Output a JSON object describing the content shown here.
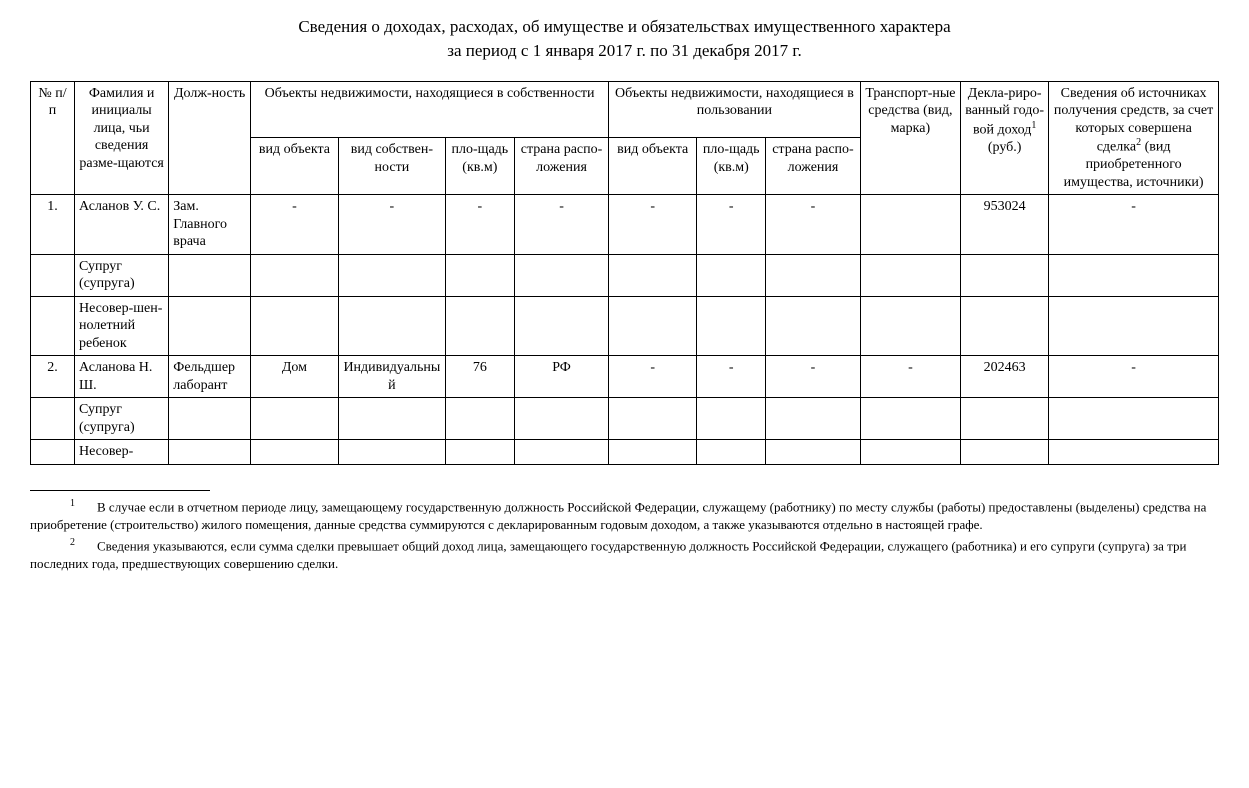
{
  "title": {
    "line1": "Сведения о доходах, расходах, об имуществе и обязательствах имущественного характера",
    "line2": "за период с 1 января 2017 г. по 31 декабря 2017 г."
  },
  "headers": {
    "c0": "№ п/п",
    "c1": "Фамилия и инициалы лица, чьи сведения разме-щаются",
    "c2": "Долж-ность",
    "group_own": "Объекты недвижимости, находящиеся в собственности",
    "group_use": "Объекты недвижимости, находящиеся в пользовании",
    "c7": "Транспорт-ные средства (вид, марка)",
    "c8_pre": "Декла-риро-ванный годо-вой доход",
    "c8_sup": "1",
    "c8_post": " (руб.)",
    "c9_pre": "Сведения об источниках получения средств, за счет которых совершена сделка",
    "c9_sup": "2",
    "c9_post": " (вид приобретенного имущества, источники)",
    "own_kind": "вид объекта",
    "own_type": "вид собствен-ности",
    "own_area": "пло-щадь (кв.м)",
    "own_country": "страна распо-ложения",
    "use_kind": "вид объекта",
    "use_area": "пло-щадь (кв.м)",
    "use_country": "страна распо-ложения"
  },
  "rows": [
    {
      "n": "1.",
      "name": "Асланов У. С.",
      "pos": "Зам. Главного врача",
      "ok": "-",
      "ot": "-",
      "oa": "-",
      "oc": "-",
      "uk": "-",
      "ua": "-",
      "uc": "-",
      "tr": "",
      "inc": "953024",
      "src": "-"
    },
    {
      "n": "",
      "name": "Супруг (супруга)",
      "pos": "",
      "ok": "",
      "ot": "",
      "oa": "",
      "oc": "",
      "uk": "",
      "ua": "",
      "uc": "",
      "tr": "",
      "inc": "",
      "src": ""
    },
    {
      "n": "",
      "name": "Несовер-шен-нолетний ребенок",
      "pos": "",
      "ok": "",
      "ot": "",
      "oa": "",
      "oc": "",
      "uk": "",
      "ua": "",
      "uc": "",
      "tr": "",
      "inc": "",
      "src": ""
    },
    {
      "n": "2.",
      "name": "Асланова Н. Ш.",
      "pos": "Фельдшер лаборант",
      "ok": "Дом",
      "ot": "Индивидуальный",
      "oa": "76",
      "oc": "РФ",
      "uk": "-",
      "ua": "-",
      "uc": "-",
      "tr": "-",
      "inc": "202463",
      "src": "-"
    },
    {
      "n": "",
      "name": "Супруг (супруга)",
      "pos": "",
      "ok": "",
      "ot": "",
      "oa": "",
      "oc": "",
      "uk": "",
      "ua": "",
      "uc": "",
      "tr": "",
      "inc": "",
      "src": ""
    },
    {
      "n": "",
      "name": "Несовер-",
      "pos": "",
      "ok": "",
      "ot": "",
      "oa": "",
      "oc": "",
      "uk": "",
      "ua": "",
      "uc": "",
      "tr": "",
      "inc": "",
      "src": ""
    }
  ],
  "footnotes": {
    "f1_sup": "1",
    "f1": "В случае если в отчетном периоде лицу, замещающему государственную должность Российской Федерации, служащему (работнику) по месту службы (работы) предоставлены (выделены) средства на приобретение (строительство) жилого помещения, данные средства суммируются с декларированным годовым доходом, а также указываются отдельно в настоящей графе.",
    "f2_sup": "2",
    "f2": "Сведения указываются, если сумма сделки превышает общий доход лица, замещающего государственную должность Российской Федерации, служащего (работника) и его супруги (супруга) за три последних года, предшествующих совершению сделки."
  },
  "colwidths": [
    "35",
    "75",
    "65",
    "70",
    "85",
    "55",
    "75",
    "70",
    "55",
    "75",
    "80",
    "70",
    "135"
  ],
  "style": {
    "background": "#ffffff",
    "text_color": "#000000",
    "border_color": "#000000",
    "font_family": "Times New Roman",
    "title_fontsize": 17,
    "body_fontsize": 14,
    "footnote_fontsize": 13
  }
}
